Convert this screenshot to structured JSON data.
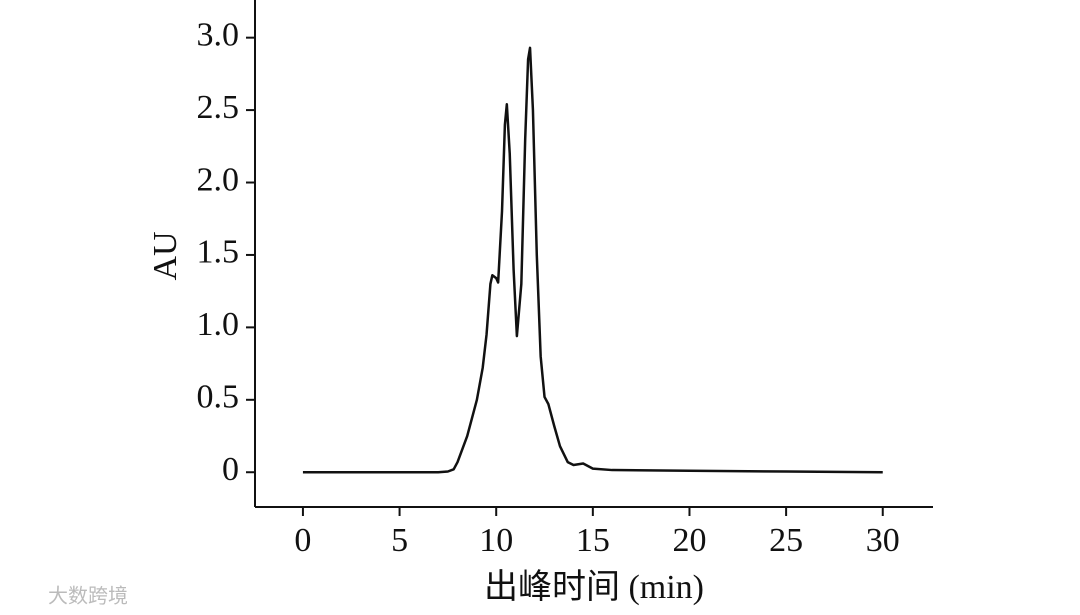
{
  "chart_data": {
    "type": "line",
    "x_label": "出峰时间 (min)",
    "y_label": "AU",
    "watermark": "大数跨境",
    "x": [
      0,
      5,
      7,
      7.5,
      7.8,
      8.0,
      8.5,
      9.0,
      9.3,
      9.5,
      9.7,
      9.8,
      10.0,
      10.1,
      10.3,
      10.45,
      10.55,
      10.7,
      10.9,
      11.07,
      11.3,
      11.5,
      11.65,
      11.75,
      11.9,
      12.1,
      12.3,
      12.5,
      12.7,
      13.0,
      13.3,
      13.7,
      14.0,
      14.5,
      15,
      16,
      20,
      25,
      30
    ],
    "series": [
      {
        "color": "#111111",
        "values": [
          0,
          0,
          0,
          0.005,
          0.02,
          0.07,
          0.25,
          0.5,
          0.72,
          0.95,
          1.3,
          1.36,
          1.34,
          1.31,
          1.8,
          2.4,
          2.54,
          2.2,
          1.4,
          0.94,
          1.3,
          2.3,
          2.85,
          2.93,
          2.5,
          1.5,
          0.8,
          0.52,
          0.47,
          0.32,
          0.18,
          0.07,
          0.05,
          0.06,
          0.025,
          0.015,
          0.01,
          0.005,
          0
        ]
      }
    ],
    "xlim": [
      -2.48,
      32.6
    ],
    "ylim": [
      -0.24,
      3.26
    ],
    "xticks": [
      0,
      5,
      10,
      15,
      20,
      25,
      30
    ],
    "yticks": [
      0,
      0.5,
      {
        "value": 1,
        "label": "1.0"
      },
      1.5,
      {
        "value": 2,
        "label": "2.0"
      },
      2.5,
      {
        "value": 3,
        "label": "3.0"
      }
    ]
  }
}
